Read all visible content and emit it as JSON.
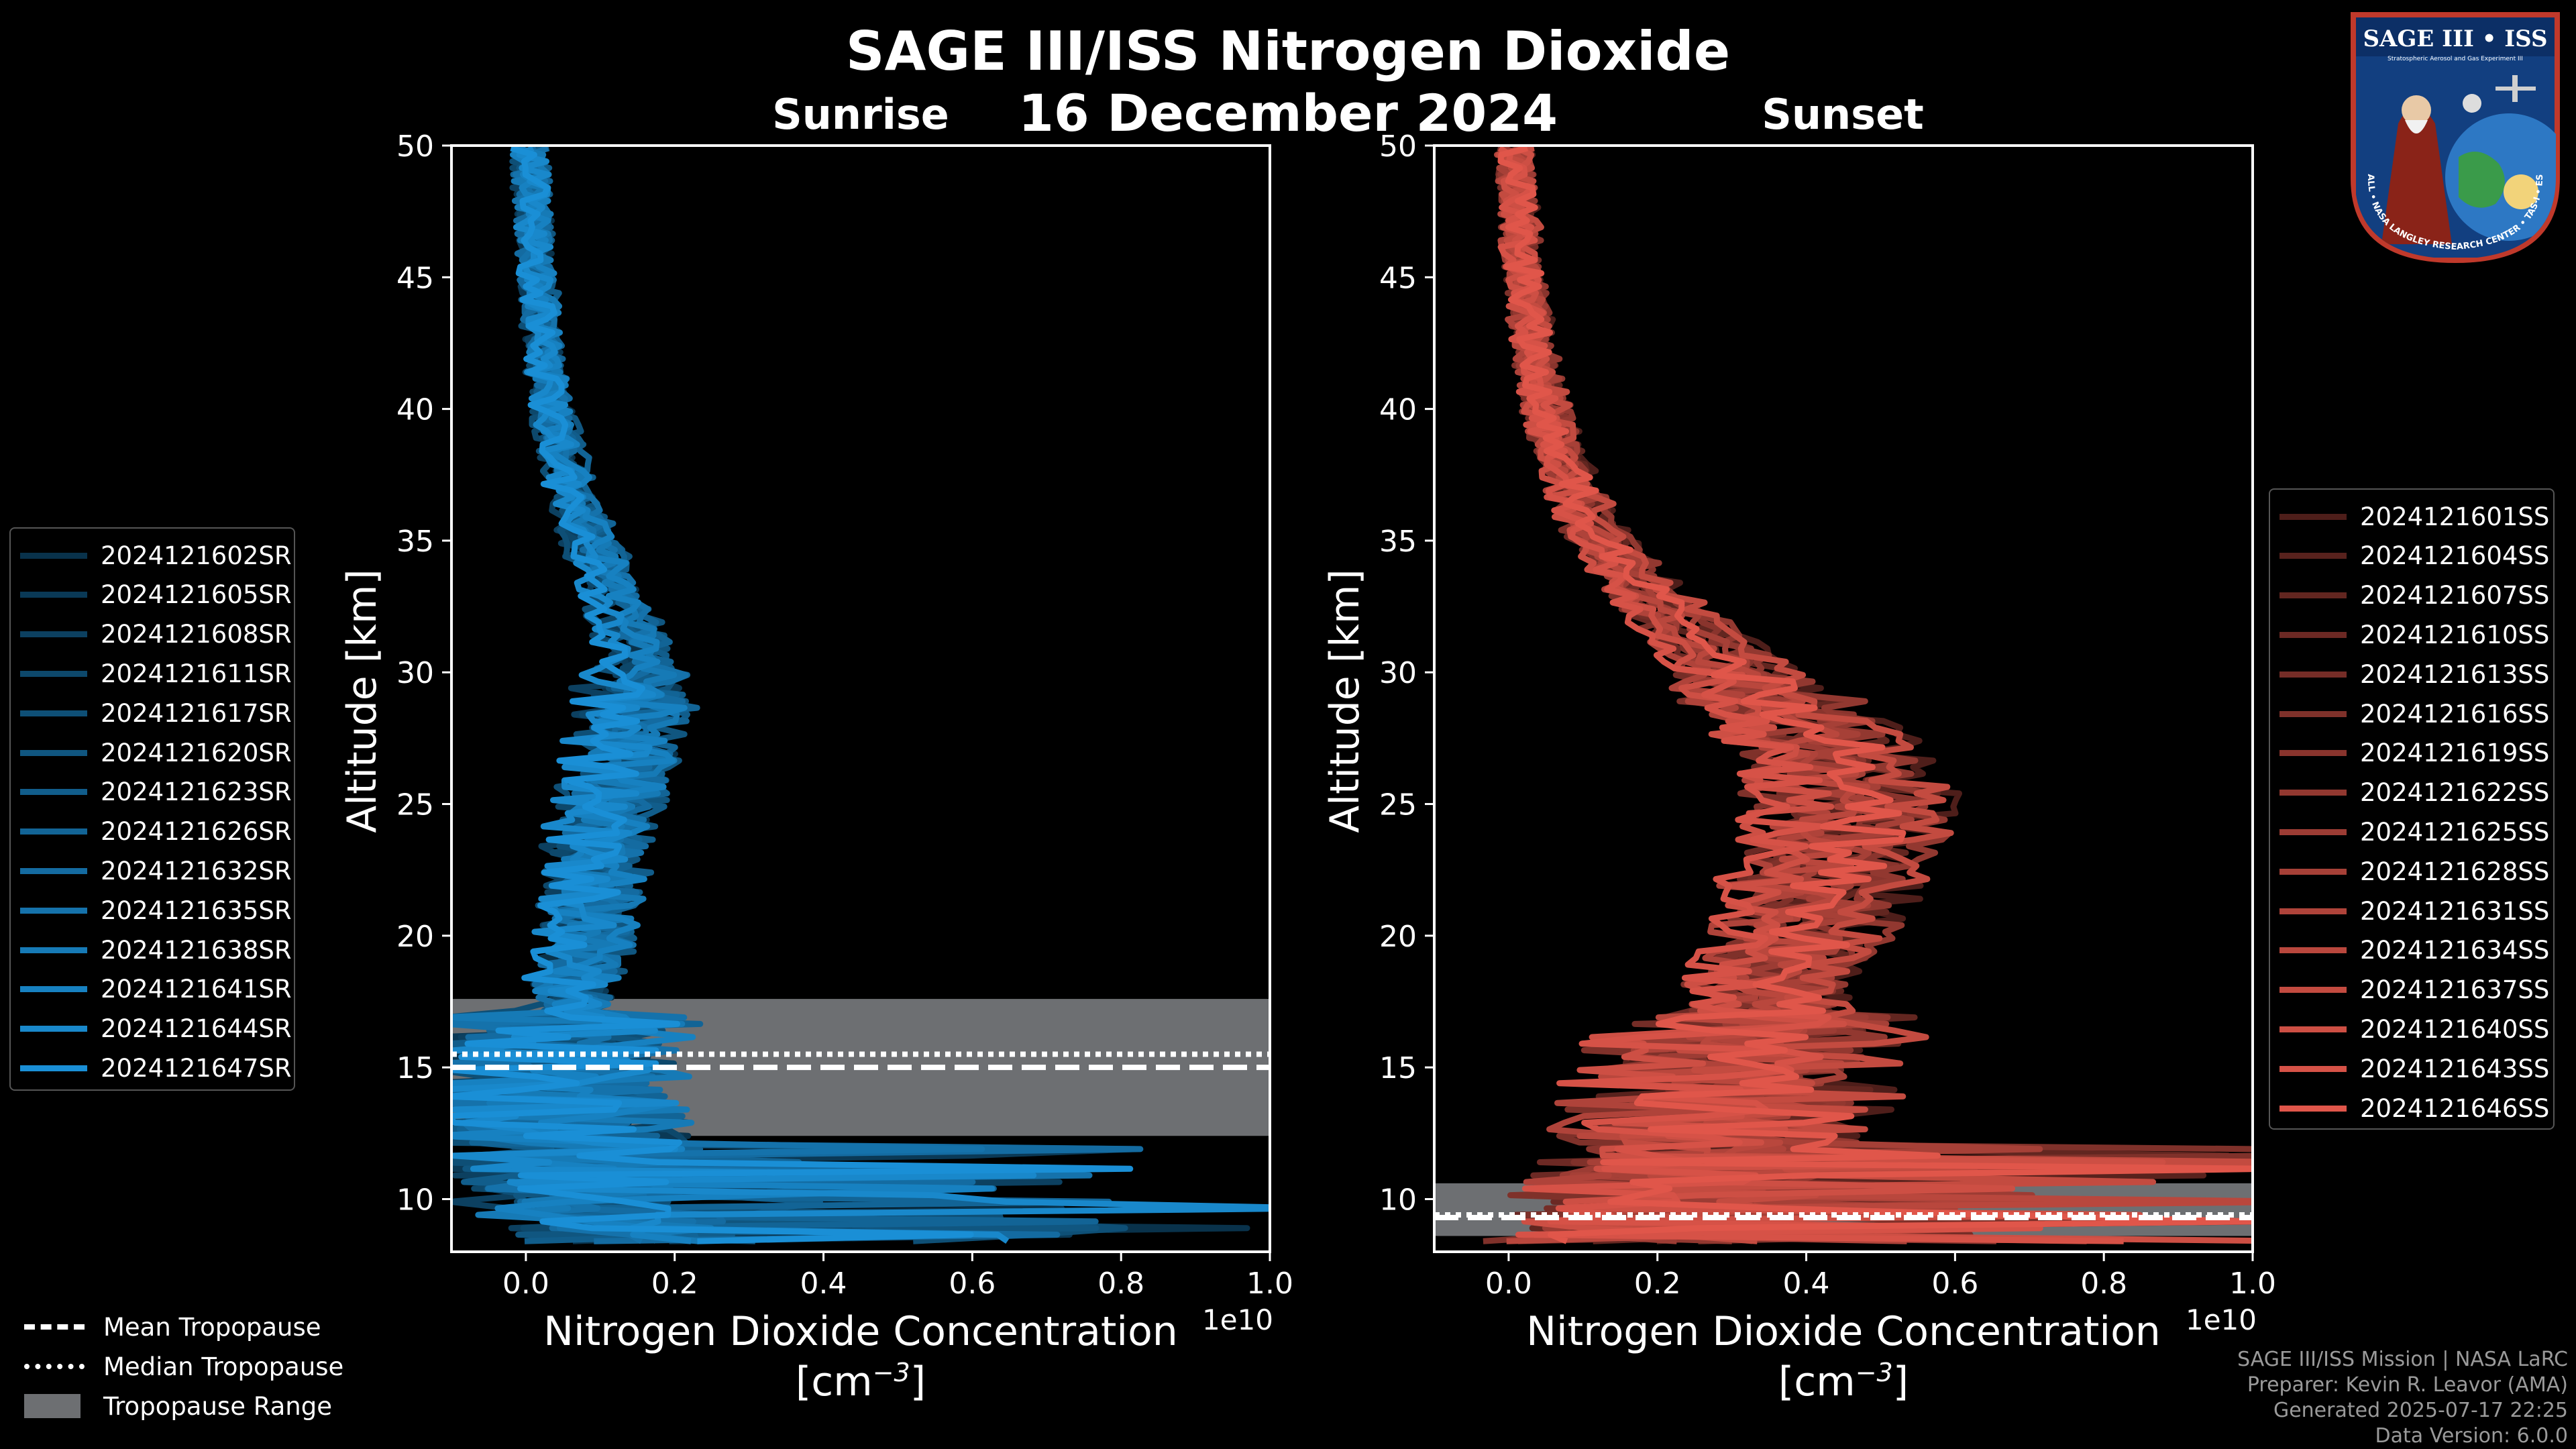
{
  "title": "SAGE III/ISS Nitrogen Dioxide",
  "date": "16 December 2024",
  "panels": {
    "sunrise_label": "Sunrise",
    "sunset_label": "Sunset"
  },
  "axes": {
    "ylabel": "Altitude [km]",
    "xlabel_line1": "Nitrogen Dioxide Concentration",
    "xlabel_line2": "[cm",
    "xlabel_exp": "−3",
    "xlabel_close": "]",
    "offset_text": "1e10",
    "y_ticks": [
      "10",
      "15",
      "20",
      "25",
      "30",
      "35",
      "40",
      "45",
      "50"
    ],
    "x_ticks": [
      "0.0",
      "0.2",
      "0.4",
      "0.6",
      "0.8",
      "1.0"
    ]
  },
  "tropopause_legend": {
    "mean": "Mean Tropopause",
    "median": "Median Tropopause",
    "range": "Tropopause Range"
  },
  "credits": {
    "line1": "SAGE III/ISS Mission | NASA LaRC",
    "line2": "Preparer: Kevin R. Leavor (AMA)",
    "line3": "Generated 2025-07-17 22:25",
    "line4": "Data Version: 6.0.0"
  },
  "logo": {
    "title": "SAGE III • ISS",
    "subtitle": "Stratospheric Aerosol and Gas Experiment III",
    "ring_text": "BALL • NASA LANGLEY RESEARCH CENTER • TAS-I • ESA"
  },
  "colors": {
    "sunrise": "#1a8fd6",
    "sunset": "#e0564a",
    "tropopause_range": "#6d6f72",
    "background": "#000000"
  },
  "chart_data": [
    {
      "type": "line",
      "panel": "Sunrise",
      "xlabel": "Nitrogen Dioxide Concentration [cm^-3]",
      "ylabel": "Altitude [km]",
      "x_scale_factor": "1e10",
      "xlim": [
        -0.1,
        1.0
      ],
      "ylim": [
        8,
        50
      ],
      "grid": false,
      "legend_position": "outside left",
      "series_names": [
        "2024121602SR",
        "2024121605SR",
        "2024121608SR",
        "2024121611SR",
        "2024121617SR",
        "2024121620SR",
        "2024121623SR",
        "2024121626SR",
        "2024121632SR",
        "2024121635SR",
        "2024121638SR",
        "2024121641SR",
        "2024121644SR",
        "2024121647SR"
      ],
      "mean_profile": {
        "altitude_km": [
          8.5,
          9,
          10,
          11,
          12,
          13,
          14,
          15,
          16,
          17,
          18,
          19,
          20,
          21,
          22,
          23,
          24,
          25,
          26,
          27,
          28,
          29,
          30,
          31,
          32,
          33,
          34,
          35,
          36,
          37,
          38,
          39,
          40,
          41,
          42,
          43,
          44,
          45,
          46,
          47,
          48,
          49,
          50
        ],
        "no2_1e10": [
          0.12,
          0.1,
          0.08,
          0.06,
          0.05,
          0.045,
          0.04,
          0.04,
          0.045,
          0.05,
          0.06,
          0.07,
          0.08,
          0.085,
          0.09,
          0.095,
          0.1,
          0.11,
          0.12,
          0.13,
          0.135,
          0.14,
          0.145,
          0.14,
          0.13,
          0.115,
          0.1,
          0.085,
          0.07,
          0.06,
          0.05,
          0.042,
          0.035,
          0.03,
          0.025,
          0.02,
          0.018,
          0.015,
          0.012,
          0.01,
          0.008,
          0.006,
          0.005
        ]
      },
      "tropopause": {
        "mean_km": 15.0,
        "median_km": 15.5,
        "range_km": [
          12.4,
          17.6
        ]
      }
    },
    {
      "type": "line",
      "panel": "Sunset",
      "xlabel": "Nitrogen Dioxide Concentration [cm^-3]",
      "ylabel": "Altitude [km]",
      "x_scale_factor": "1e10",
      "xlim": [
        -0.1,
        1.0
      ],
      "ylim": [
        8,
        50
      ],
      "grid": false,
      "legend_position": "outside right",
      "series_names": [
        "2024121601SS",
        "2024121604SS",
        "2024121607SS",
        "2024121610SS",
        "2024121613SS",
        "2024121616SS",
        "2024121619SS",
        "2024121622SS",
        "2024121625SS",
        "2024121628SS",
        "2024121631SS",
        "2024121634SS",
        "2024121637SS",
        "2024121640SS",
        "2024121643SS",
        "2024121646SS"
      ],
      "mean_profile": {
        "altitude_km": [
          8.5,
          9,
          10,
          11,
          12,
          13,
          14,
          15,
          16,
          17,
          18,
          19,
          20,
          21,
          22,
          23,
          24,
          25,
          26,
          27,
          28,
          29,
          30,
          31,
          32,
          33,
          34,
          35,
          36,
          37,
          38,
          39,
          40,
          41,
          42,
          43,
          44,
          45,
          46,
          47,
          48,
          49,
          50
        ],
        "no2_1e10": [
          0.15,
          0.18,
          0.2,
          0.22,
          0.25,
          0.27,
          0.29,
          0.3,
          0.32,
          0.34,
          0.35,
          0.37,
          0.38,
          0.4,
          0.41,
          0.42,
          0.44,
          0.45,
          0.44,
          0.42,
          0.38,
          0.34,
          0.3,
          0.26,
          0.22,
          0.18,
          0.15,
          0.12,
          0.1,
          0.085,
          0.07,
          0.06,
          0.05,
          0.042,
          0.035,
          0.03,
          0.025,
          0.02,
          0.018,
          0.015,
          0.012,
          0.01,
          0.008
        ]
      },
      "tropopause": {
        "mean_km": 9.3,
        "median_km": 9.4,
        "range_km": [
          8.6,
          10.6
        ]
      }
    }
  ]
}
